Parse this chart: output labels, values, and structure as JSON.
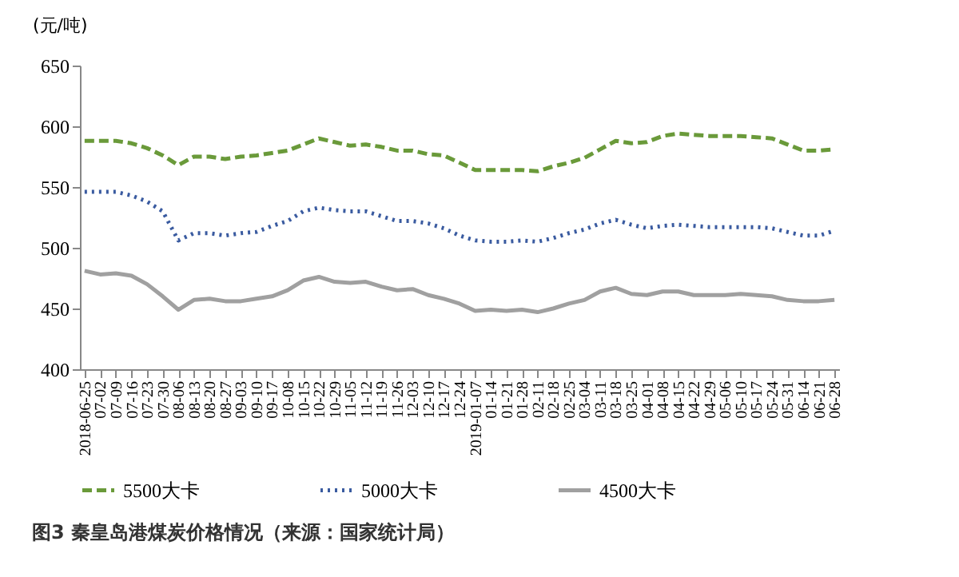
{
  "chart_data": {
    "type": "line",
    "title": "图3 秦皇岛港煤炭价格情况（来源：国家统计局）",
    "ylabel": "(元/吨)",
    "categories": [
      "2018-06-25",
      "07-02",
      "07-09",
      "07-16",
      "07-23",
      "07-30",
      "08-06",
      "08-13",
      "08-20",
      "08-27",
      "09-03",
      "09-10",
      "09-17",
      "10-08",
      "10-15",
      "10-22",
      "10-29",
      "11-05",
      "11-12",
      "11-19",
      "11-26",
      "12-03",
      "12-10",
      "12-17",
      "12-24",
      "2019-01-07",
      "01-14",
      "01-21",
      "01-28",
      "02-11",
      "02-18",
      "02-25",
      "03-04",
      "03-11",
      "03-18",
      "03-25",
      "04-01",
      "04-08",
      "04-15",
      "04-22",
      "04-29",
      "05-06",
      "05-10",
      "05-17",
      "05-24",
      "05-31",
      "06-14",
      "06-21",
      "06-28"
    ],
    "series": [
      {
        "name": "5500大卡",
        "color": "#6a9a3a",
        "line_style": "dashed",
        "values": [
          588,
          588,
          588,
          586,
          582,
          576,
          568,
          575,
          575,
          573,
          575,
          576,
          578,
          580,
          585,
          590,
          587,
          584,
          585,
          583,
          580,
          580,
          577,
          576,
          570,
          564,
          564,
          564,
          564,
          563,
          567,
          570,
          574,
          581,
          588,
          586,
          587,
          592,
          594,
          593,
          592,
          592,
          592,
          591,
          590,
          585,
          580,
          580,
          581
        ]
      },
      {
        "name": "5000大卡",
        "color": "#3a5ba0",
        "line_style": "dotted",
        "values": [
          546,
          546,
          546,
          543,
          538,
          530,
          506,
          512,
          512,
          510,
          512,
          513,
          518,
          522,
          530,
          533,
          531,
          530,
          530,
          526,
          522,
          522,
          520,
          516,
          510,
          506,
          505,
          505,
          506,
          505,
          508,
          512,
          515,
          520,
          523,
          519,
          516,
          518,
          519,
          518,
          517,
          517,
          517,
          517,
          516,
          513,
          510,
          510,
          514
        ]
      },
      {
        "name": "4500大卡",
        "color": "#a0a0a0",
        "line_style": "solid",
        "values": [
          481,
          478,
          479,
          477,
          470,
          460,
          449,
          457,
          458,
          456,
          456,
          458,
          460,
          465,
          473,
          476,
          472,
          471,
          472,
          468,
          465,
          466,
          461,
          458,
          454,
          448,
          449,
          448,
          449,
          447,
          450,
          454,
          457,
          464,
          467,
          462,
          461,
          464,
          464,
          461,
          461,
          461,
          462,
          461,
          460,
          457,
          456,
          456,
          457
        ]
      }
    ],
    "ylim": [
      400,
      650
    ],
    "yticks": [
      400,
      450,
      500,
      550,
      600,
      650
    ],
    "legend": "bottom"
  }
}
